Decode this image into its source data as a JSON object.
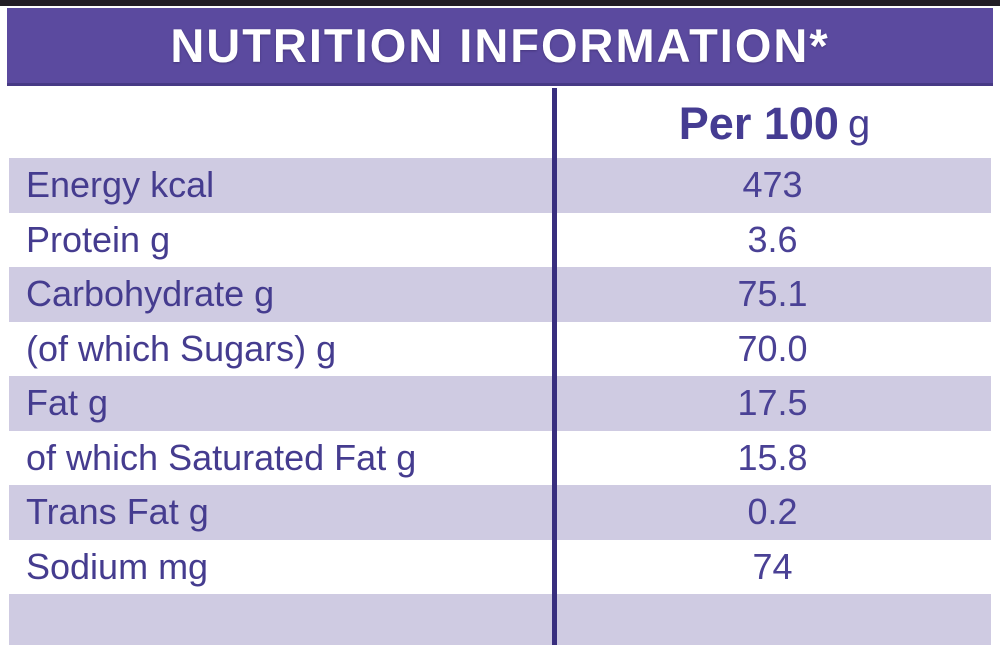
{
  "header": {
    "title": "NUTRITION INFORMATION*"
  },
  "table": {
    "column_header": {
      "main": "Per 100",
      "unit": "g"
    },
    "rows": [
      {
        "label": "Energy kcal",
        "value": "473"
      },
      {
        "label": "Protein g",
        "value": "3.6"
      },
      {
        "label": "Carbohydrate g",
        "value": "75.1"
      },
      {
        "label": "(of which Sugars) g",
        "value": "70.0"
      },
      {
        "label": "Fat g",
        "value": "17.5"
      },
      {
        "label": "of which Saturated Fat g",
        "value": "15.8"
      },
      {
        "label": "Trans Fat g",
        "value": "0.2"
      },
      {
        "label": "Sodium mg",
        "value": "74"
      }
    ]
  },
  "colors": {
    "header_bg": "#5b4a9f",
    "header_text": "#ffffff",
    "row_alt_bg": "#cfcbe2",
    "row_bg": "#ffffff",
    "label_text": "#453c8f",
    "value_text": "#4a4195",
    "divider": "#382e7e",
    "top_strip": "#221d26"
  }
}
